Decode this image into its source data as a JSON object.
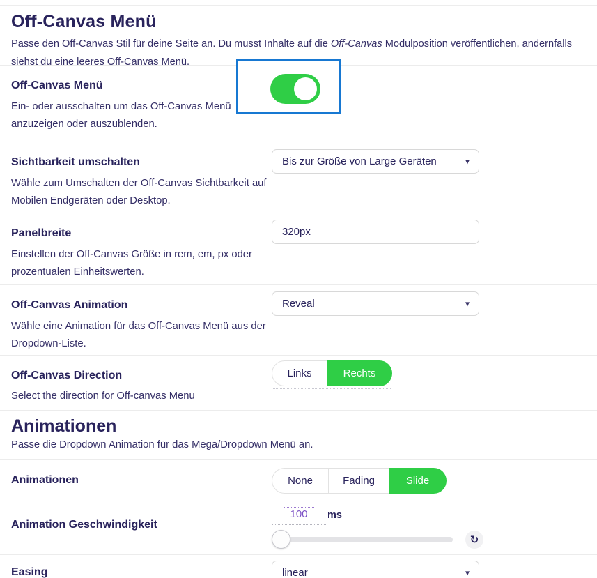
{
  "theme": {
    "accent_green": "#2fce46",
    "focus_blue": "#1778d2",
    "heading_navy": "#29235c",
    "value_purple": "#7b4fc5"
  },
  "section_offcanvas": {
    "title": "Off-Canvas Menü",
    "desc_before": "Passe den Off-Canvas Stil für deine Seite an. Du musst Inhalte auf die ",
    "desc_italic": "Off-Canvas",
    "desc_after": " Modulposition veröffentlichen, andernfalls siehst du eine leeres Off-Canvas Menü."
  },
  "rows": {
    "toggle": {
      "label": "Off-Canvas Menü",
      "description": "Ein- oder ausschalten um das Off-Canvas Menü anzuzeigen oder auszublenden.",
      "state": "on"
    },
    "visibility": {
      "label": "Sichtbarkeit umschalten",
      "description": "Wähle zum Umschalten der Off-Canvas Sichtbarkeit auf Mobilen Endgeräten oder Desktop.",
      "value": "Bis zur Größe von Large Geräten"
    },
    "panel_width": {
      "label": "Panelbreite",
      "description": "Einstellen der Off-Canvas Größe in rem, em, px oder prozentualen Einheitswerten.",
      "value": "320px"
    },
    "animation": {
      "label": "Off-Canvas Animation",
      "description": "Wähle eine Animation für das Off-Canvas Menü aus der Dropdown-Liste.",
      "value": "Reveal"
    },
    "direction": {
      "label": "Off-Canvas Direction",
      "description": "Select the direction for Off-canvas Menu",
      "options": [
        "Links",
        "Rechts"
      ],
      "selected": "Rechts"
    }
  },
  "section_animations": {
    "title": "Animationen",
    "description": "Passe die Dropdown Animation für das Mega/Dropdown Menü an."
  },
  "rows2": {
    "animations": {
      "label": "Animationen",
      "options": [
        "None",
        "Fading",
        "Slide"
      ],
      "selected": "Slide"
    },
    "speed": {
      "label": "Animation Geschwindigkeit",
      "value": "100",
      "unit": "ms",
      "slider_percent": 1
    },
    "easing": {
      "label": "Easing",
      "value": "linear"
    }
  },
  "icons": {
    "caret_down": "▾",
    "reset": "↻"
  }
}
